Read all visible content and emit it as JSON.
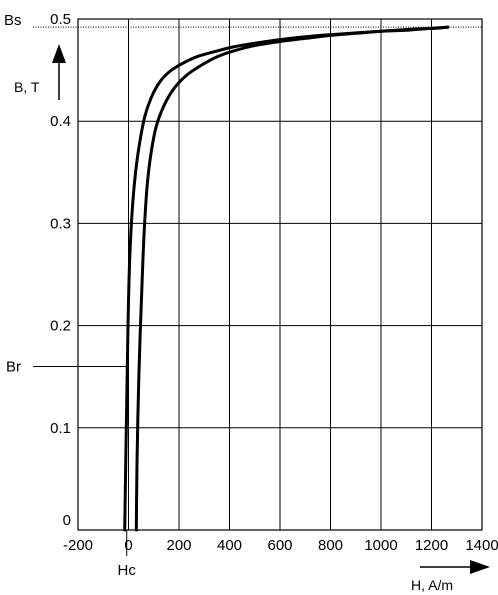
{
  "chart_data": {
    "type": "line",
    "title": "",
    "xlabel": "H, A/m",
    "ylabel": "B, T",
    "xlim": [
      -200,
      1400
    ],
    "ylim": [
      0,
      0.5
    ],
    "x_ticks": [
      -200,
      0,
      200,
      400,
      600,
      800,
      1000,
      1200,
      1400
    ],
    "x_tick_labels": [
      "-200",
      "0",
      "200",
      "400",
      "600",
      "800",
      "1000",
      "1200",
      "1400"
    ],
    "y_ticks": [
      0,
      0.1,
      0.2,
      0.3,
      0.4,
      0.5
    ],
    "y_tick_labels": [
      "0",
      "0.1",
      "0.2",
      "0.3",
      "0.4",
      "0.5"
    ],
    "grid": true,
    "legend": "none",
    "markers": {
      "saturation": {
        "label": "Bs",
        "value": 0.492
      },
      "remanence": {
        "label": "Br",
        "value": 0.16
      },
      "coercivity": {
        "label": "Hc",
        "value": -7
      }
    },
    "series": [
      {
        "x": [
          -15,
          -10,
          -6,
          -2,
          4,
          14,
          28,
          45,
          65,
          90,
          120,
          160,
          210,
          270,
          340,
          420,
          520,
          640,
          760,
          880,
          1000,
          1120,
          1220,
          1265
        ],
        "y": [
          0,
          0.08,
          0.14,
          0.2,
          0.26,
          0.31,
          0.35,
          0.38,
          0.405,
          0.423,
          0.437,
          0.448,
          0.456,
          0.463,
          0.468,
          0.473,
          0.477,
          0.481,
          0.484,
          0.486,
          0.488,
          0.49,
          0.491,
          0.492
        ]
      },
      {
        "x": [
          1265,
          1200,
          1100,
          1000,
          900,
          800,
          700,
          600,
          500,
          420,
          350,
          290,
          230,
          180,
          140,
          110,
          90,
          75,
          65,
          58,
          52,
          46,
          41,
          37,
          34,
          32,
          31
        ],
        "y": [
          0.492,
          0.491,
          0.489,
          0.488,
          0.486,
          0.484,
          0.481,
          0.478,
          0.474,
          0.469,
          0.463,
          0.455,
          0.445,
          0.432,
          0.415,
          0.395,
          0.37,
          0.34,
          0.305,
          0.27,
          0.23,
          0.19,
          0.15,
          0.11,
          0.07,
          0.03,
          0
        ]
      }
    ]
  }
}
